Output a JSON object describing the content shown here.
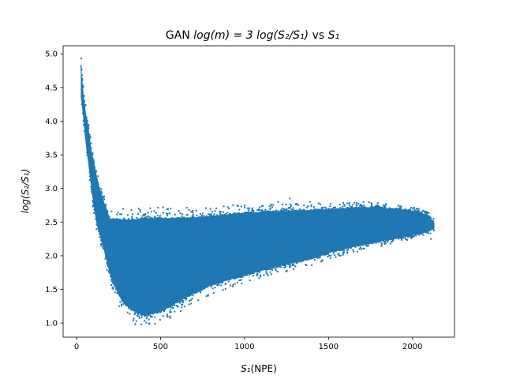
{
  "chart_data": {
    "type": "scatter",
    "title": {
      "prefix": "GAN ",
      "main": "log(m) = 3 log(S₂/S₁)",
      "connector": " vs ",
      "suffix": "S₁"
    },
    "xlabel": {
      "symbol": "S₁",
      "unit": "(NPE)"
    },
    "ylabel": "log(S₂/S₁)",
    "xlim": [
      -80,
      2250
    ],
    "ylim": [
      0.79,
      5.12
    ],
    "x_ticks": [
      {
        "value": 0,
        "label": "0"
      },
      {
        "value": 500,
        "label": "500"
      },
      {
        "value": 1000,
        "label": "1000"
      },
      {
        "value": 1500,
        "label": "1500"
      },
      {
        "value": 2000,
        "label": "2000"
      }
    ],
    "y_ticks": [
      {
        "value": 1.0,
        "label": "1.0"
      },
      {
        "value": 1.5,
        "label": "1.5"
      },
      {
        "value": 2.0,
        "label": "2.0"
      },
      {
        "value": 2.5,
        "label": "2.5"
      },
      {
        "value": 3.0,
        "label": "3.0"
      },
      {
        "value": 3.5,
        "label": "3.5"
      },
      {
        "value": 4.0,
        "label": "4.0"
      },
      {
        "value": 4.5,
        "label": "4.5"
      },
      {
        "value": 5.0,
        "label": "5.0"
      }
    ],
    "grid": false,
    "marker_color": "#1f77b4",
    "envelope": {
      "x": [
        25,
        30,
        40,
        50,
        60,
        75,
        90,
        100,
        120,
        150,
        180,
        200,
        250,
        300,
        350,
        400,
        500,
        600,
        700,
        800,
        1000,
        1200,
        1400,
        1500,
        1700,
        1800,
        1900,
        2000,
        2050,
        2100,
        2130
      ],
      "upper": [
        4.95,
        4.8,
        4.5,
        4.3,
        4.1,
        3.9,
        3.6,
        3.5,
        3.25,
        2.95,
        2.75,
        2.6,
        2.6,
        2.6,
        2.6,
        2.62,
        2.62,
        2.62,
        2.63,
        2.65,
        2.7,
        2.72,
        2.74,
        2.75,
        2.78,
        2.78,
        2.75,
        2.73,
        2.7,
        2.65,
        2.55
      ],
      "lower": [
        4.3,
        4.2,
        4.0,
        3.7,
        3.5,
        3.2,
        2.9,
        2.7,
        2.4,
        2.15,
        1.85,
        1.65,
        1.35,
        1.2,
        1.1,
        1.05,
        1.1,
        1.25,
        1.38,
        1.5,
        1.65,
        1.78,
        1.9,
        1.98,
        2.1,
        2.15,
        2.2,
        2.25,
        2.28,
        2.3,
        2.35
      ]
    },
    "outliers": [
      {
        "x": 28,
        "y": 4.93
      },
      {
        "x": 350,
        "y": 0.98
      },
      {
        "x": 430,
        "y": 1.05
      },
      {
        "x": 540,
        "y": 1.1
      },
      {
        "x": 1200,
        "y": 2.8
      },
      {
        "x": 1270,
        "y": 2.85
      },
      {
        "x": 1390,
        "y": 2.8
      },
      {
        "x": 2110,
        "y": 2.25
      },
      {
        "x": 2125,
        "y": 2.55
      },
      {
        "x": 370,
        "y": 2.7
      },
      {
        "x": 560,
        "y": 2.7
      }
    ]
  }
}
